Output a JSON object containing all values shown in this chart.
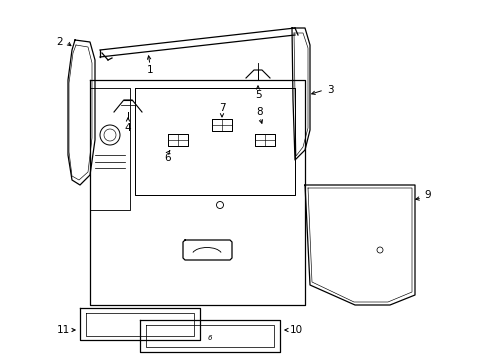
{
  "background_color": "#ffffff",
  "line_color": "#000000",
  "figsize": [
    4.9,
    3.6
  ],
  "dpi": 100,
  "xlim": [
    0,
    490
  ],
  "ylim": [
    0,
    360
  ]
}
